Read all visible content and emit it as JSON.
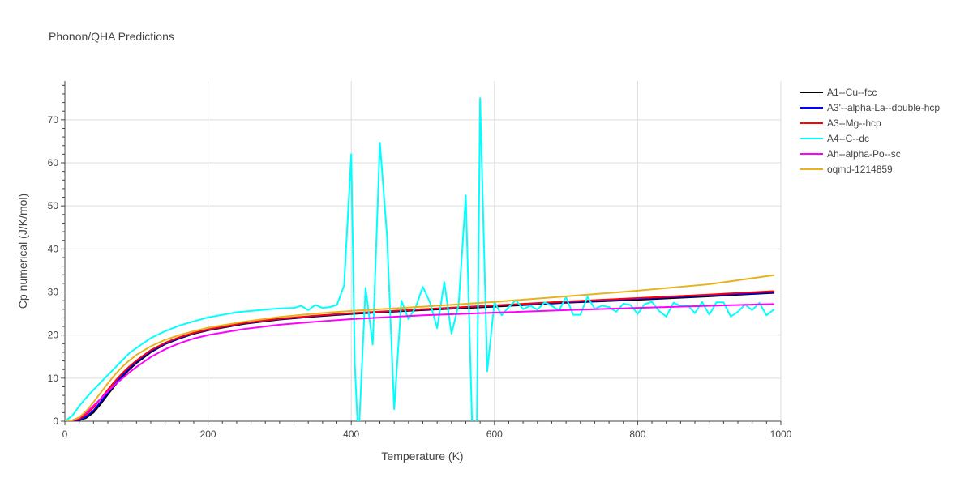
{
  "chart_data": {
    "type": "line",
    "title": "Phonon/QHA Predictions",
    "xlabel": "Temperature (K)",
    "ylabel": "Cp numerical (J/K/mol)",
    "xlim": [
      0,
      1000
    ],
    "ylim": [
      0,
      79
    ],
    "x_ticks": [
      0,
      200,
      400,
      600,
      800,
      1000
    ],
    "y_ticks": [
      0,
      10,
      20,
      30,
      40,
      50,
      60,
      70
    ],
    "grid": true,
    "legend_position": "top-right",
    "series": [
      {
        "name": "A1--Cu--fcc",
        "color": "#000000",
        "points": [
          [
            0,
            0
          ],
          [
            10,
            0
          ],
          [
            20,
            0.2
          ],
          [
            30,
            0.8
          ],
          [
            40,
            2
          ],
          [
            50,
            4
          ],
          [
            60,
            6.2
          ],
          [
            70,
            8.3
          ],
          [
            80,
            10.3
          ],
          [
            90,
            12
          ],
          [
            100,
            13.5
          ],
          [
            120,
            16
          ],
          [
            140,
            17.9
          ],
          [
            160,
            19.2
          ],
          [
            180,
            20.3
          ],
          [
            200,
            21.1
          ],
          [
            250,
            22.6
          ],
          [
            300,
            23.6
          ],
          [
            350,
            24.3
          ],
          [
            400,
            24.9
          ],
          [
            500,
            25.8
          ],
          [
            600,
            26.6
          ],
          [
            700,
            27.5
          ],
          [
            800,
            28.2
          ],
          [
            900,
            29
          ],
          [
            990,
            29.8
          ]
        ]
      },
      {
        "name": "A3'--alpha-La--double-hcp",
        "color": "#0000ff",
        "points": [
          [
            0,
            0
          ],
          [
            10,
            0
          ],
          [
            20,
            0.3
          ],
          [
            30,
            1.1
          ],
          [
            40,
            2.5
          ],
          [
            50,
            4.5
          ],
          [
            60,
            6.6
          ],
          [
            70,
            8.7
          ],
          [
            80,
            10.6
          ],
          [
            90,
            12.3
          ],
          [
            100,
            13.8
          ],
          [
            120,
            16.2
          ],
          [
            140,
            18
          ],
          [
            160,
            19.3
          ],
          [
            180,
            20.4
          ],
          [
            200,
            21.2
          ],
          [
            250,
            22.7
          ],
          [
            300,
            23.7
          ],
          [
            350,
            24.4
          ],
          [
            400,
            25
          ],
          [
            500,
            25.9
          ],
          [
            600,
            26.8
          ],
          [
            700,
            27.6
          ],
          [
            800,
            28.4
          ],
          [
            900,
            29.2
          ],
          [
            990,
            29.9
          ]
        ]
      },
      {
        "name": "A3--Mg--hcp",
        "color": "#ff0000",
        "points": [
          [
            0,
            0
          ],
          [
            10,
            0.1
          ],
          [
            20,
            0.5
          ],
          [
            30,
            1.6
          ],
          [
            40,
            3.2
          ],
          [
            50,
            5.2
          ],
          [
            60,
            7.3
          ],
          [
            70,
            9.3
          ],
          [
            80,
            11.1
          ],
          [
            90,
            12.7
          ],
          [
            100,
            14.1
          ],
          [
            120,
            16.5
          ],
          [
            140,
            18.2
          ],
          [
            160,
            19.5
          ],
          [
            180,
            20.5
          ],
          [
            200,
            21.3
          ],
          [
            250,
            22.8
          ],
          [
            300,
            23.8
          ],
          [
            350,
            24.5
          ],
          [
            400,
            25.1
          ],
          [
            500,
            26
          ],
          [
            600,
            26.9
          ],
          [
            700,
            27.8
          ],
          [
            800,
            28.6
          ],
          [
            900,
            29.4
          ],
          [
            990,
            30.2
          ]
        ]
      },
      {
        "name": "A4--C--dc",
        "color": "#00ffff",
        "points": [
          [
            0,
            0
          ],
          [
            10,
            1.2
          ],
          [
            20,
            3.5
          ],
          [
            30,
            5.5
          ],
          [
            40,
            7.3
          ],
          [
            50,
            9
          ],
          [
            60,
            10.7
          ],
          [
            70,
            12.4
          ],
          [
            80,
            14.1
          ],
          [
            90,
            15.8
          ],
          [
            100,
            17
          ],
          [
            120,
            19.3
          ],
          [
            140,
            20.9
          ],
          [
            160,
            22.2
          ],
          [
            180,
            23.2
          ],
          [
            200,
            24.1
          ],
          [
            220,
            24.7
          ],
          [
            240,
            25.3
          ],
          [
            260,
            25.6
          ],
          [
            280,
            25.9
          ],
          [
            300,
            26.2
          ],
          [
            320,
            26.3
          ],
          [
            330,
            26.8
          ],
          [
            340,
            25.8
          ],
          [
            350,
            27
          ],
          [
            360,
            26.3
          ],
          [
            370,
            26.5
          ],
          [
            380,
            27
          ],
          [
            390,
            31.5
          ],
          [
            400,
            62
          ],
          [
            405,
            13
          ],
          [
            410,
            -5
          ],
          [
            420,
            31
          ],
          [
            430,
            17.8
          ],
          [
            440,
            64.7
          ],
          [
            450,
            43
          ],
          [
            460,
            2.8
          ],
          [
            470,
            28
          ],
          [
            480,
            23.7
          ],
          [
            490,
            26.5
          ],
          [
            500,
            31.2
          ],
          [
            510,
            27.6
          ],
          [
            520,
            21.6
          ],
          [
            530,
            32.3
          ],
          [
            540,
            20.3
          ],
          [
            550,
            27.1
          ],
          [
            560,
            52.4
          ],
          [
            570,
            -8
          ],
          [
            575,
            -8
          ],
          [
            580,
            75
          ],
          [
            590,
            11.6
          ],
          [
            600,
            27.7
          ],
          [
            610,
            24.6
          ],
          [
            620,
            26.5
          ],
          [
            630,
            28.1
          ],
          [
            640,
            26
          ],
          [
            650,
            26.8
          ],
          [
            660,
            25.9
          ],
          [
            670,
            27.6
          ],
          [
            680,
            26.8
          ],
          [
            690,
            25.7
          ],
          [
            700,
            28.8
          ],
          [
            710,
            24.7
          ],
          [
            720,
            24.7
          ],
          [
            730,
            28.9
          ],
          [
            740,
            26.1
          ],
          [
            750,
            26.8
          ],
          [
            760,
            26.5
          ],
          [
            770,
            25.4
          ],
          [
            780,
            27.3
          ],
          [
            790,
            27
          ],
          [
            800,
            24.9
          ],
          [
            810,
            27.2
          ],
          [
            820,
            27.7
          ],
          [
            830,
            25.6
          ],
          [
            840,
            24.3
          ],
          [
            850,
            27.5
          ],
          [
            860,
            26.8
          ],
          [
            870,
            26.9
          ],
          [
            880,
            25.1
          ],
          [
            890,
            27.7
          ],
          [
            900,
            24.7
          ],
          [
            910,
            27.6
          ],
          [
            920,
            27.6
          ],
          [
            930,
            24.3
          ],
          [
            940,
            25.4
          ],
          [
            950,
            27.1
          ],
          [
            960,
            25.8
          ],
          [
            970,
            27.5
          ],
          [
            980,
            24.6
          ],
          [
            990,
            25.9
          ]
        ]
      },
      {
        "name": "Ah--alpha-Po--sc",
        "color": "#ff00ff",
        "points": [
          [
            0,
            0
          ],
          [
            10,
            0.1
          ],
          [
            20,
            0.8
          ],
          [
            30,
            2
          ],
          [
            40,
            3.6
          ],
          [
            50,
            5.2
          ],
          [
            60,
            6.9
          ],
          [
            70,
            8.5
          ],
          [
            80,
            9.9
          ],
          [
            90,
            11.3
          ],
          [
            100,
            12.6
          ],
          [
            120,
            14.9
          ],
          [
            140,
            16.7
          ],
          [
            160,
            18.1
          ],
          [
            180,
            19.2
          ],
          [
            200,
            20
          ],
          [
            250,
            21.4
          ],
          [
            300,
            22.4
          ],
          [
            350,
            23.1
          ],
          [
            400,
            23.7
          ],
          [
            500,
            24.6
          ],
          [
            600,
            25.2
          ],
          [
            700,
            25.8
          ],
          [
            800,
            26.3
          ],
          [
            900,
            26.8
          ],
          [
            990,
            27.2
          ]
        ]
      },
      {
        "name": "oqmd-1214859",
        "color": "#e6b31e",
        "points": [
          [
            0,
            0
          ],
          [
            10,
            0.2
          ],
          [
            20,
            0.9
          ],
          [
            30,
            2.4
          ],
          [
            40,
            4.4
          ],
          [
            50,
            6.6
          ],
          [
            60,
            8.8
          ],
          [
            70,
            10.8
          ],
          [
            80,
            12.6
          ],
          [
            90,
            14.1
          ],
          [
            100,
            15.4
          ],
          [
            120,
            17.4
          ],
          [
            140,
            18.9
          ],
          [
            160,
            20
          ],
          [
            180,
            20.9
          ],
          [
            200,
            21.7
          ],
          [
            250,
            23.1
          ],
          [
            300,
            24.2
          ],
          [
            350,
            25
          ],
          [
            400,
            25.6
          ],
          [
            500,
            26.6
          ],
          [
            600,
            27.7
          ],
          [
            700,
            29
          ],
          [
            800,
            30.3
          ],
          [
            900,
            31.8
          ],
          [
            990,
            33.9
          ]
        ]
      }
    ]
  }
}
